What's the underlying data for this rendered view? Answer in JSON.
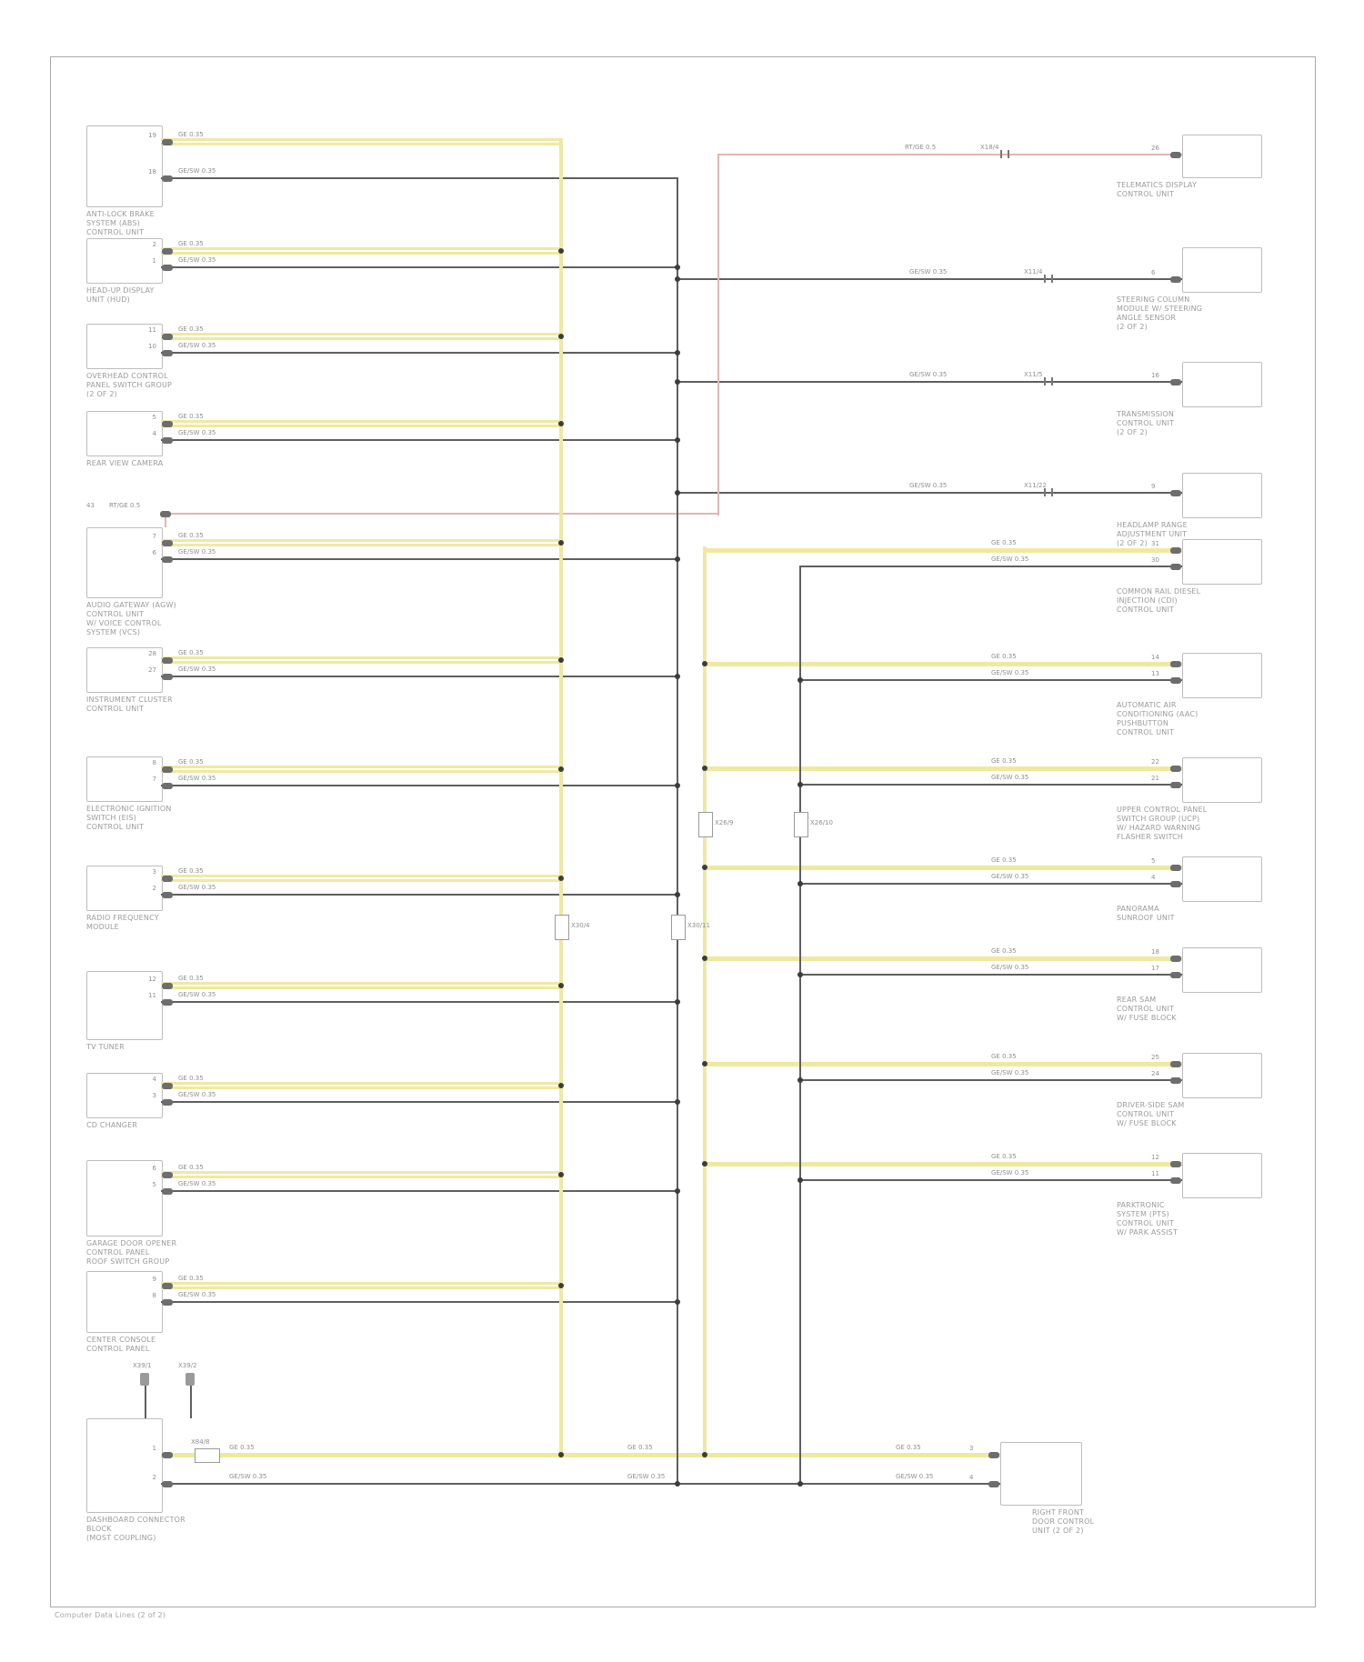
{
  "diagram": {
    "footer": "Computer Data Lines (2 of 2)",
    "colors": {
      "bus_yellow": "#efe9a0",
      "wire_dark": "#5f5f5f",
      "wire_pink": "#e3b6b1",
      "label_gray": "#9b9b9b"
    },
    "codes": {
      "yellow": "GE 0.35",
      "dark": "GE/SW 0.35",
      "pink": "RT/GE 0.5"
    },
    "left_components": [
      {
        "name": [
          "ANTI-LOCK BRAKE",
          "SYSTEM (ABS)",
          "CONTROL UNIT"
        ],
        "pins": [
          "19",
          "18"
        ]
      },
      {
        "name": [
          "HEAD-UP DISPLAY",
          "UNIT (HUD)"
        ],
        "pins": [
          "2",
          "1"
        ]
      },
      {
        "name": [
          "OVERHEAD CONTROL",
          "PANEL SWITCH GROUP",
          "(2 OF 2)"
        ],
        "pins": [
          "11",
          "10"
        ]
      },
      {
        "name": [
          "REAR VIEW CAMERA"
        ],
        "pins": [
          "5",
          "4"
        ]
      },
      {
        "name": [
          "AUDIO GATEWAY (AGW)",
          "CONTROL UNIT",
          "W/ VOICE CONTROL",
          "SYSTEM (VCS)"
        ],
        "pins": [
          "7",
          "6"
        ],
        "pink_pin": "43"
      },
      {
        "name": [
          "INSTRUMENT CLUSTER",
          "CONTROL UNIT"
        ],
        "pins": [
          "28",
          "27"
        ]
      },
      {
        "name": [
          "ELECTRONIC IGNITION",
          "SWITCH (EIS)",
          "CONTROL UNIT"
        ],
        "pins": [
          "8",
          "7"
        ]
      },
      {
        "name": [
          "RADIO FREQUENCY",
          "MODULE"
        ],
        "pins": [
          "3",
          "2"
        ]
      },
      {
        "name": [
          "TV TUNER"
        ],
        "pins": [
          "12",
          "11"
        ]
      },
      {
        "name": [
          "CD CHANGER"
        ],
        "pins": [
          "4",
          "3"
        ]
      },
      {
        "name": [
          "GARAGE DOOR OPENER",
          "CONTROL PANEL",
          "ROOF SWITCH GROUP"
        ],
        "pins": [
          "6",
          "5"
        ]
      },
      {
        "name": [
          "CENTER CONSOLE",
          "CONTROL PANEL"
        ],
        "pins": [
          "9",
          "8"
        ]
      },
      {
        "name": [
          "DASHBOARD CONNECTOR",
          "BLOCK",
          "(MOST COUPLING)"
        ],
        "pins": [
          "1",
          "2"
        ]
      }
    ],
    "right_components": [
      {
        "name": [
          "TELEMATICS DISPLAY",
          "CONTROL UNIT"
        ],
        "pins": [
          "26"
        ]
      },
      {
        "name": [
          "STEERING COLUMN",
          "MODULE W/ STEERING",
          "ANGLE SENSOR",
          "(2 OF 2)"
        ],
        "pins": [
          "6"
        ]
      },
      {
        "name": [
          "TRANSMISSION",
          "CONTROL UNIT",
          "(2 OF 2)"
        ],
        "pins": [
          "16"
        ]
      },
      {
        "name": [
          "HEADLAMP RANGE",
          "ADJUSTMENT UNIT",
          "(2 OF 2)"
        ],
        "pins": [
          "9"
        ]
      },
      {
        "name": [
          "COMMON RAIL DIESEL",
          "INJECTION (CDI)",
          "CONTROL UNIT"
        ],
        "pins": [
          "31",
          "30"
        ]
      },
      {
        "name": [
          "AUTOMATIC AIR",
          "CONDITIONING (AAC)",
          "PUSHBUTTON",
          "CONTROL UNIT"
        ],
        "pins": [
          "14",
          "13"
        ]
      },
      {
        "name": [
          "UPPER CONTROL PANEL",
          "SWITCH GROUP (UCP)",
          "W/ HAZARD WARNING",
          "FLASHER SWITCH"
        ],
        "pins": [
          "22",
          "21"
        ]
      },
      {
        "name": [
          "PANORAMA",
          "SUNROOF UNIT"
        ],
        "pins": [
          "5",
          "4"
        ]
      },
      {
        "name": [
          "REAR SAM",
          "CONTROL UNIT",
          "W/ FUSE BLOCK"
        ],
        "pins": [
          "18",
          "17"
        ]
      },
      {
        "name": [
          "DRIVER-SIDE SAM",
          "CONTROL UNIT",
          "W/ FUSE BLOCK"
        ],
        "pins": [
          "25",
          "24"
        ]
      },
      {
        "name": [
          "PARKTRONIC",
          "SYSTEM (PTS)",
          "CONTROL UNIT",
          "W/ PARK ASSIST"
        ],
        "pins": [
          "12",
          "11"
        ]
      },
      {
        "name": [
          "RIGHT FRONT",
          "DOOR CONTROL",
          "UNIT (2 OF 2)"
        ],
        "pins": [
          "3",
          "4"
        ]
      }
    ],
    "connectors": {
      "bus1": "X30/4",
      "bus2": "X30/11",
      "bus3": "X26/9",
      "bus4": "X26/10",
      "pink": "X18/4",
      "row2": "X11/4",
      "row3": "X11/5",
      "row4": "X11/22",
      "splice": "X84/8",
      "stems": [
        "X39/1",
        "X39/2"
      ]
    }
  }
}
